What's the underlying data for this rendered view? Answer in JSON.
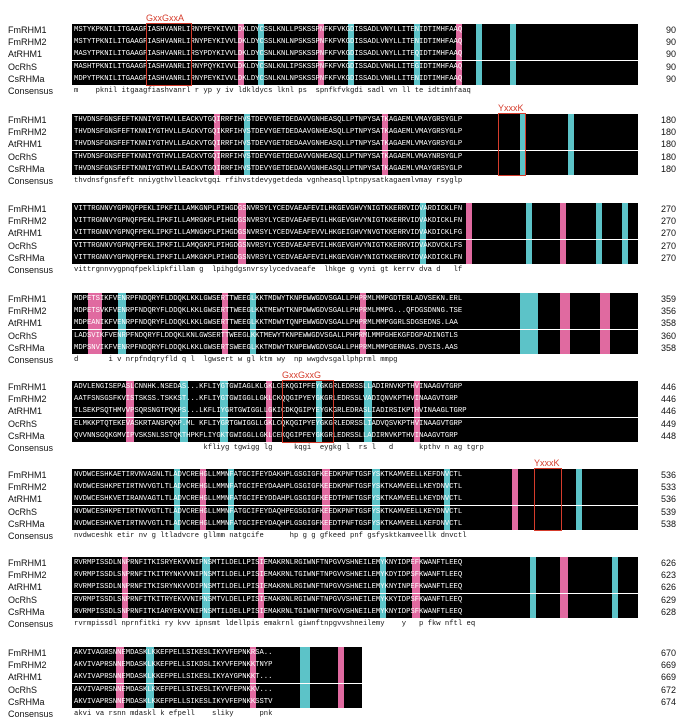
{
  "consensus_label": "Consensus",
  "motif_color": "#d63c2c",
  "highlight_colors": {
    "identical": "#000000",
    "similar_pink": "#e06aa0",
    "similar_cyan": "#5cc3c8"
  },
  "blocks": [
    {
      "motif": {
        "label": "GxxGxxA"
      },
      "rows": [
        {
          "name": "FmRHM1",
          "seq": "MSTYKPKNILITGAAGFIASHVANRLIRNYPEYKIVVLDKLDYCSSLKNLLPSKSSPNFKFVKGDISSADLVNYLLITENIDTIMHFAAQ",
          "end": "90"
        },
        {
          "name": "FmRHM2",
          "seq": "MSTYTPKNILITGAAGFIASHVANRLIRNYPEYKIVVLDKLDYCSSLKNLNPSKSSPNFKFVKGDISSADLVNYLLITENIDTIMHFAAQ",
          "end": "90"
        },
        {
          "name": "AtRHM1",
          "seq": "MASYTPKNILITGAAGFIASHVANRLIRSYPDYKIVVLDKLDYCSNLKNLNPSKSSPNFKFVKGDISSADLVNYLLITEQIDTIMHFAAQ",
          "end": "90"
        },
        {
          "name": "OcRhS",
          "seq": "MASHTPKNILITGAAGFIASHVANRLIRNYPQYKIVVLDKLDYCSNLKNLIPSKSSPNFKFVKGDISSADLVNHLLITEGIDTIMHFAAQ",
          "end": "90"
        },
        {
          "name": "CsRHMa",
          "seq": "MDPYTPKNILITGAAGFIASHVANRLIRNYPEYKIVVLDKLDYCSNLKNLNPSKSSPNFKFVKGDISSADLVNHLLITENIDTIMHFAAQ",
          "end": "90"
        }
      ],
      "consensus": "m    pknil itgaagfiashvanrl r yp y iv ldkldycs lknl ps  spnfkfvkgdi sadl vn ll te idtimhfaaq"
    },
    {
      "motif": {
        "label": "YxxxK"
      },
      "rows": [
        {
          "name": "FmRHM1",
          "seq": "THVDNSFGNSFEFTKNNIYGTHVLLEACKVTGQIRRFIHVSTDEVYGETDEDAVVGNHEASQLLPTNPYSATKAGAEMLVMAYGRSYGLP",
          "end": "180"
        },
        {
          "name": "FmRHM2",
          "seq": "THVDNSFGNSFEFTKNNIYGTHVLLEACKVTGQIKRFIHVSTDEVYGETDEDAAVGNHEASQLLPTNPYSATKAGAEMLVMAYGRSYGLP",
          "end": "180"
        },
        {
          "name": "AtRHM1",
          "seq": "THVDNSFGNSFEFTKNNIYGTHVLLEACKVTGQIRRFIHVSTDEVYGETDEDAAVGNHEASQLLPTNPYSATKAGAEMLVMAYGRSYGLP",
          "end": "180"
        },
        {
          "name": "OcRhS",
          "seq": "THVDNSFGNSFEFTKNNIYGTHVLLEACKVTGQIRRFIHVSTDEVYGETDEDAVVGNHEASQLLPTNPYSATKAGAEMLVMAYNRSYGLP",
          "end": "180"
        },
        {
          "name": "CsRHMa",
          "seq": "THVDNSFGNSFEFTKNNIYGTHVLLEACKVTGQIRRFIHVSTDEVYGETDEDAVVGNHEASQLLPTNPYSATKAGAEMLVMAYGRSYGLP",
          "end": "180"
        }
      ],
      "consensus": "thvdnsfgnsfeft nniygthvlleackvtgqi rfihvstdevygetdeda vgnheasqllptnpysatkagaemlvmay rsyglp"
    },
    {
      "motif": null,
      "rows": [
        {
          "name": "FmRHM1",
          "seq": "VITTRGNNVYGPNQFPEKLIPKFILLAMKGNPLPIHGDGSNVRSYLYCEDVAEAFEVILHKGEVGHVYNIGTKKERRVIDVARDICKLFN",
          "end": "270"
        },
        {
          "name": "FmRHM2",
          "seq": "VITTRGNNVYGPNQFPEKLIPKFILLAMRGKPLPIHGDGSNVRSYLYCEDVAEAFEVILHKGEVGHVYNIGTKKERRVIDVAKDICKLFN",
          "end": "270"
        },
        {
          "name": "AtRHM1",
          "seq": "VITTRGNNVYGPNQFPEKLIPKFILLAMNGKPLPIHGDGSNVRSYLYCEDVAEAFEVVLHKGEIGHVYNVGTKKERRVIDVAKDICKLFG",
          "end": "270"
        },
        {
          "name": "OcRhS",
          "seq": "VITTRGNNVYGPNQFPEKLIPKFILLAMQGKPLPIHGDGSNVRSYLYCEDVAEAFEVILHKGEVGHVYNIGTKKERRVIDVAKDVCKLFS",
          "end": "270"
        },
        {
          "name": "CsRHMa",
          "seq": "VITTRGNNVYGPNQFPEKLIPKFILLAMKGKPLPIHGDGSNVRSYLYCEDVAEAFEVILHKGEVGHVYNIGTKKERRVIDVAKDICKLFN",
          "end": "270"
        }
      ],
      "consensus": "vittrgnnvygpnqfpeklipkfillam g  lpihgdgsnvrsylycedvaeafe  lhkge g vyni gt kerrv dva d   lf"
    },
    {
      "motif": null,
      "rows": [
        {
          "name": "FmRHM1",
          "seq": "MDPETSIKFVENRPFNDQRYFLDDQKLKKLGWSERTTWEEGLKKTMDWYTKNPEWWGDVSGALLPHPRMLMMPGDTERLADVSEKN.ERL",
          "end": "359"
        },
        {
          "name": "FmRHM2",
          "seq": "MDPETSVKFVENRPFNDQRYFLDDQKLKKLGWSERTTWEEGLKKTMEWYTKNPDWWGDVSGALLPHPRMLMMPG...QFDGSDNNG.TSE",
          "end": "356"
        },
        {
          "name": "AtRHM1",
          "seq": "MDPEANIKFVENRPFNDQRYFLDDQKLKKLGWSERTTWEEGLKKTMDWYTQNPEWWGDVSGALLPHPRMLMMPGGRLSDGSEDNS.LAA",
          "end": "358"
        },
        {
          "name": "OcRhS",
          "seq": "LADSVIKFVENRPFNDQRYFLDDQKLKNLGWSERTTWEEGLKKTMEWYTKNPEWWGDVSGALLPHPRMLMMPGHEKGFDGPADINGTLS",
          "end": "360"
        },
        {
          "name": "CsRHMa",
          "seq": "MDPSNVIKFVENRPFNDQRYFLDDQKLKKLGWSERTSWEEGLKKTMDWYTKNPEWWGDVSGALLPHPRMLMMPGERNAS.DVSIS.AAS",
          "end": "358"
        }
      ],
      "consensus": "d       i v nrpfndqryfld q l  lgwsert w gl ktm wy  np wwgdvsgallphprml mmpg"
    },
    {
      "motif": {
        "label": "GxxGxxG"
      },
      "rows": [
        {
          "name": "FmRHM1",
          "seq": "ADVLENGISEPASLCNNHK.NSEDAS...KFLIYGTGWIAGLKLGKLCEKQGIPFEYGKGRLEDRSSLLADIRNVKPTHVINAAGVTGRP",
          "end": "446"
        },
        {
          "name": "FmRHM2",
          "seq": "AATFSNSGSFKVISTSKSS.TSKKST...KFLIYGTGWIGGLLGKLCKQQGIPYEYGKGRLEDRSSLVADIQNVKPTHVINAAGVTGRP",
          "end": "446"
        },
        {
          "name": "AtRHM1",
          "seq": "TLSEKPSQTHMVVPSQRSNGTPQKPS...LKFLIYGRTGWIGGLLGKICDKQGIPYEYGKGRLEDRASLIADIRSIKPTHVINAAGLTGRP",
          "end": "446"
        },
        {
          "name": "OcRhS",
          "seq": "ELMKKPTQTEKEVASKRTANSPQKP.ML KFLIYGRTGWIGGLLGKLCQKQGIPYEYGKGRLEDRSSLIADVQSVKPTHVINAAGVTGRP",
          "end": "449"
        },
        {
          "name": "CsRHMa",
          "seq": "QVVNNSGQKGMVIPVSKSNLSSTQKTHPKFLIYGKTGWIGGLLGKLCEKQGIPFEYGKGRLEDRSSLLADIRNVKPTHVINAAGVTGRP",
          "end": "448"
        }
      ],
      "consensus": "                              kfliyg tgwigg lg     kqgi  eygkg l  rs l   d      kpthv n ag tgrp"
    },
    {
      "motif": {
        "label": "YxxxK"
      },
      "rows": [
        {
          "name": "FmRHM1",
          "seq": "NVDWCESHKAETIRVNVAGNLTLADVCREHGLLMMNFATGCIFEYDAKHPLGSGIGFKEEDKPNFTGSFYSKTKAMVEELLKEFDNVCTL",
          "end": "536"
        },
        {
          "name": "FmRHM2",
          "seq": "NVDWCESHKPETIRTNVVGTLTLADVCREHGLLMMNFATGCIFEYDAAHPLGSGIGFKEEDKPNFTGSFYSKTKAMVEELLKEYDNVCTL",
          "end": "533"
        },
        {
          "name": "AtRHM1",
          "seq": "NVDWCESHKVETIRANVAGTLTLADVCREHGLLMMNFATGCIFEYDDAHPLGSGIGFKEEDTPNFTGSFYSKTKAMVEELLKEYDNVCTL",
          "end": "536"
        },
        {
          "name": "OcRhS",
          "seq": "NVDWCESHKPETIRTNVVGTLTLADVCREHGLLMMNFATGCIFEYDAQHPEGSGIGFKEEDKPNFTGSFYSKTKAMVEELLKEYDNVCTL",
          "end": "539"
        },
        {
          "name": "CsRHMa",
          "seq": "NVDWCESHKVETIRTNVVGTLTLADVCREHGLLMMNFATGCIFEYDAQHPLGSGIGFKEEDTPNFTGSFYSKTKAMVEELLKEFDNVCTL",
          "end": "538"
        }
      ],
      "consensus": "nvdwceshk etir nv g ltladvcre gllmm natgcife      hp g g gfkeed pnf gsfysktkamveellk dnvctl"
    },
    {
      "motif": null,
      "rows": [
        {
          "name": "FmRHM1",
          "seq": "RVRMPISSDLNNPRNFITKISRYEKVVNIPNSMTILDELLPISIEMAKRNLRGIWNFTNPGVVSHNEILEMYKNYIDPEFKWANFTLEEQ",
          "end": "626"
        },
        {
          "name": "FmRHM2",
          "seq": "RVRMPISSDLSNPRNFITKITRYNKVVNIPNSMTILDELLPISIEMAKRNLTGIWNFTNPGVVSHNEILEMYKDYIDPSFKWANFTLEEQ",
          "end": "623"
        },
        {
          "name": "AtRHM1",
          "seq": "RVRMPISSDLNNPRNFITKISRYNKVVDIPNSMTILDELLPISIEMAKRNLRGIWNFTNPGVVSHNEILEMYKNYINPEFKWANFTLEEQ",
          "end": "626"
        },
        {
          "name": "OcRhS",
          "seq": "RVRMPISSDLSNPRNFITKITRYEKVVNIPNSMTVLDELLPISIEMAKRNLRGIWNFTNPGVVSHNEILEMYKKYIDPSFKWANFTLEEQ",
          "end": "629"
        },
        {
          "name": "CsRHMa",
          "seq": "RVRMPISSDLSNPRNFITKIARYEKVVNIPNSMTILDELLPISIEMAKRNLTGIWNFTNPGVVSHNEILEMYKNYIDPSFKWANFTLEEQ",
          "end": "628"
        }
      ],
      "consensus": "rvrmpissdl nprnfitki ry kvv ipnsmt ldellpis emakrnl giwnftnpgvvshneilemy    y   p fkw nftl eq"
    },
    {
      "motif": null,
      "rows": [
        {
          "name": "FmRHM1",
          "seq": "AKVIVAGRSNNEMDASKLKKEFPELLSIKESLIKYVFEPNKRSA..",
          "end": "670"
        },
        {
          "name": "FmRHM2",
          "seq": "AKVIVAPRSNNEMDASKLKKEFPELLSIKDSLIKYVFEPNKKTNYP",
          "end": "669"
        },
        {
          "name": "AtRHM1",
          "seq": "AKVIVAPRSNNEMDASKLKKEFPELLSIKESLIKYAYGPNKKT...",
          "end": "669"
        },
        {
          "name": "OcRhS",
          "seq": "AKVIVAPRSNNEMDASKLKKEFPELLSIKESLIKYVFEPNKKV...",
          "end": "672"
        },
        {
          "name": "CsRHMa",
          "seq": "AKVIVAPRSNNEMDASKLKKEFPELLSIKESLIKYVFEPNKKSSTV",
          "end": "674"
        }
      ],
      "consensus": "akvi va rsnn mdaskl k efpell    sliky      pnk"
    }
  ]
}
